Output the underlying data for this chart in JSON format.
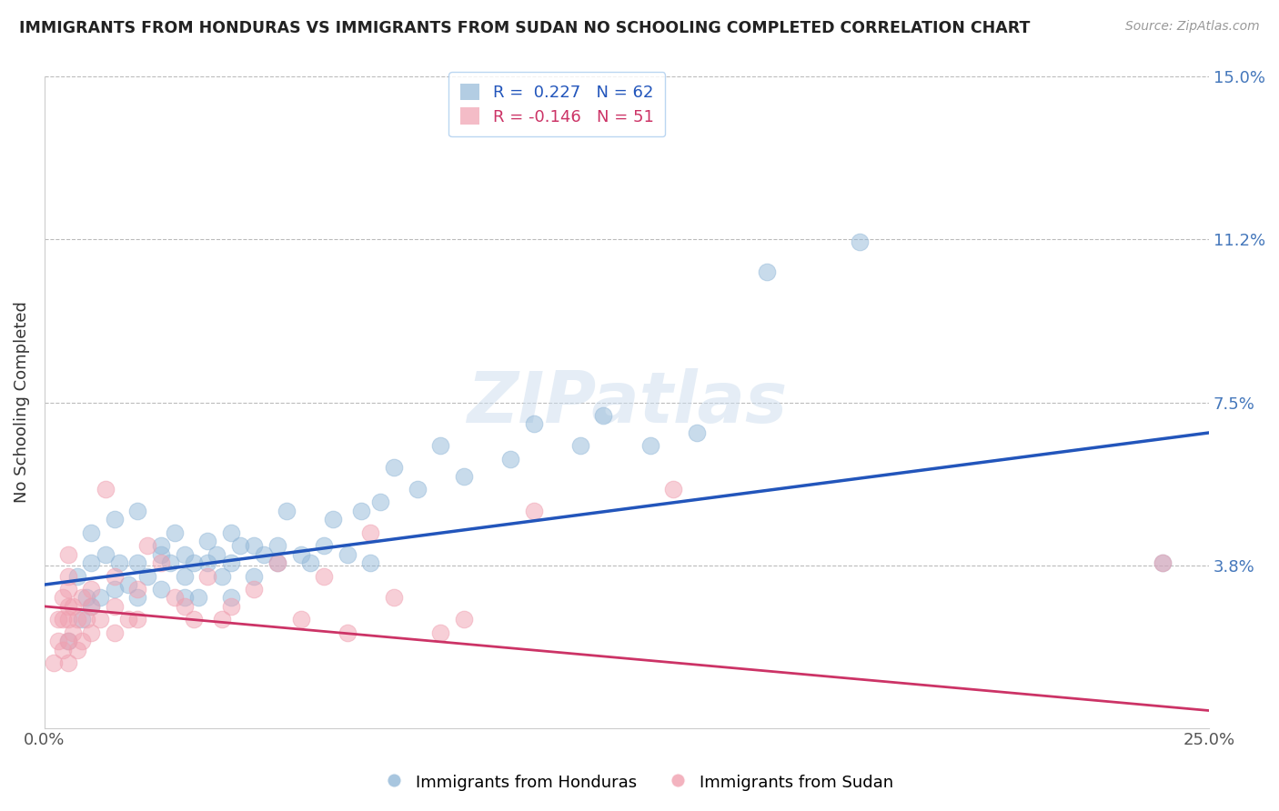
{
  "title": "IMMIGRANTS FROM HONDURAS VS IMMIGRANTS FROM SUDAN NO SCHOOLING COMPLETED CORRELATION CHART",
  "source": "Source: ZipAtlas.com",
  "ylabel": "No Schooling Completed",
  "xlabel": "",
  "xlim": [
    0.0,
    0.25
  ],
  "ylim": [
    0.0,
    0.15
  ],
  "yticks": [
    0.0,
    0.0375,
    0.075,
    0.1125,
    0.15
  ],
  "ytick_labels": [
    "",
    "3.8%",
    "7.5%",
    "11.2%",
    "15.0%"
  ],
  "xticks": [
    0.0,
    0.25
  ],
  "xtick_labels": [
    "0.0%",
    "25.0%"
  ],
  "blue_R": 0.227,
  "blue_N": 62,
  "pink_R": -0.146,
  "pink_N": 51,
  "blue_color": "#93B8D8",
  "pink_color": "#F0A0B0",
  "blue_line_color": "#2255BB",
  "pink_line_color": "#CC3366",
  "watermark_text": "ZIPatlas",
  "legend_label_blue": "Immigrants from Honduras",
  "legend_label_pink": "Immigrants from Sudan",
  "blue_scatter_x": [
    0.005,
    0.007,
    0.008,
    0.009,
    0.01,
    0.01,
    0.01,
    0.012,
    0.013,
    0.015,
    0.015,
    0.016,
    0.018,
    0.02,
    0.02,
    0.02,
    0.022,
    0.025,
    0.025,
    0.025,
    0.027,
    0.028,
    0.03,
    0.03,
    0.03,
    0.032,
    0.033,
    0.035,
    0.035,
    0.037,
    0.038,
    0.04,
    0.04,
    0.04,
    0.042,
    0.045,
    0.045,
    0.047,
    0.05,
    0.05,
    0.052,
    0.055,
    0.057,
    0.06,
    0.062,
    0.065,
    0.068,
    0.07,
    0.072,
    0.075,
    0.08,
    0.085,
    0.09,
    0.1,
    0.105,
    0.115,
    0.12,
    0.13,
    0.14,
    0.155,
    0.175,
    0.24
  ],
  "blue_scatter_y": [
    0.02,
    0.035,
    0.025,
    0.03,
    0.028,
    0.038,
    0.045,
    0.03,
    0.04,
    0.032,
    0.048,
    0.038,
    0.033,
    0.03,
    0.038,
    0.05,
    0.035,
    0.032,
    0.04,
    0.042,
    0.038,
    0.045,
    0.03,
    0.035,
    0.04,
    0.038,
    0.03,
    0.038,
    0.043,
    0.04,
    0.035,
    0.03,
    0.038,
    0.045,
    0.042,
    0.035,
    0.042,
    0.04,
    0.038,
    0.042,
    0.05,
    0.04,
    0.038,
    0.042,
    0.048,
    0.04,
    0.05,
    0.038,
    0.052,
    0.06,
    0.055,
    0.065,
    0.058,
    0.062,
    0.07,
    0.065,
    0.072,
    0.065,
    0.068,
    0.105,
    0.112,
    0.038
  ],
  "pink_scatter_x": [
    0.002,
    0.003,
    0.003,
    0.004,
    0.004,
    0.004,
    0.005,
    0.005,
    0.005,
    0.005,
    0.005,
    0.005,
    0.005,
    0.006,
    0.006,
    0.007,
    0.007,
    0.008,
    0.008,
    0.009,
    0.01,
    0.01,
    0.01,
    0.012,
    0.013,
    0.015,
    0.015,
    0.015,
    0.018,
    0.02,
    0.02,
    0.022,
    0.025,
    0.028,
    0.03,
    0.032,
    0.035,
    0.038,
    0.04,
    0.045,
    0.05,
    0.055,
    0.06,
    0.065,
    0.07,
    0.075,
    0.085,
    0.09,
    0.105,
    0.135,
    0.24
  ],
  "pink_scatter_y": [
    0.015,
    0.02,
    0.025,
    0.018,
    0.025,
    0.03,
    0.015,
    0.02,
    0.025,
    0.028,
    0.032,
    0.035,
    0.04,
    0.022,
    0.028,
    0.018,
    0.025,
    0.02,
    0.03,
    0.025,
    0.022,
    0.028,
    0.032,
    0.025,
    0.055,
    0.022,
    0.028,
    0.035,
    0.025,
    0.025,
    0.032,
    0.042,
    0.038,
    0.03,
    0.028,
    0.025,
    0.035,
    0.025,
    0.028,
    0.032,
    0.038,
    0.025,
    0.035,
    0.022,
    0.045,
    0.03,
    0.022,
    0.025,
    0.05,
    0.055,
    0.038
  ],
  "blue_trend_x": [
    0.0,
    0.25
  ],
  "blue_trend_y": [
    0.033,
    0.068
  ],
  "pink_trend_x": [
    0.0,
    0.25
  ],
  "pink_trend_y": [
    0.028,
    0.004
  ]
}
